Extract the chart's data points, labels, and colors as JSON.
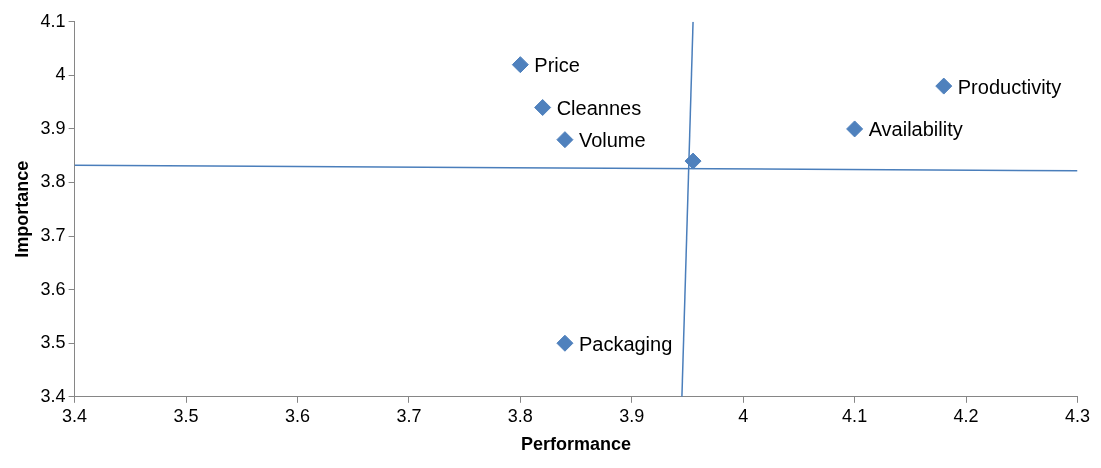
{
  "chart_data": {
    "type": "scatter",
    "xlabel": "Performance",
    "ylabel": "Importance",
    "xlim": [
      3.4,
      4.3
    ],
    "xticks": [
      3.4,
      3.5,
      3.6,
      3.7,
      3.8,
      3.9,
      4,
      4.1,
      4.2,
      4.3
    ],
    "ylim": [
      3.4,
      4.1
    ],
    "yticks": [
      3.4,
      3.5,
      3.6,
      3.7,
      3.8,
      3.9,
      4,
      4.1
    ],
    "grid": false,
    "legend": false,
    "series": [
      {
        "marker": "diamond",
        "color": "#4f81bd",
        "x": [
          3.8,
          3.82,
          3.84,
          3.955,
          3.84,
          4.1,
          4.18
        ],
        "values": [
          4.02,
          3.94,
          3.88,
          3.84,
          3.5,
          3.9,
          3.98
        ]
      },
      {
        "type": "line",
        "marker": "none",
        "color": "#4a7ebb",
        "x": [
          3.4,
          4.3
        ],
        "values": [
          3.832,
          3.822
        ]
      },
      {
        "type": "line",
        "marker": "none",
        "color": "#4a7ebb",
        "x": [
          3.955,
          3.945
        ],
        "values": [
          4.1,
          3.4
        ]
      }
    ],
    "annotations": [
      {
        "text": "Price",
        "x": 3.8,
        "y": 4.02
      },
      {
        "text": "Cleannes",
        "x": 3.82,
        "y": 3.94
      },
      {
        "text": "Volume",
        "x": 3.84,
        "y": 3.88
      },
      {
        "text": "Packaging",
        "x": 3.84,
        "y": 3.5
      },
      {
        "text": "Availability",
        "x": 4.1,
        "y": 3.9
      },
      {
        "text": "Productivity",
        "x": 4.18,
        "y": 3.98
      }
    ]
  }
}
